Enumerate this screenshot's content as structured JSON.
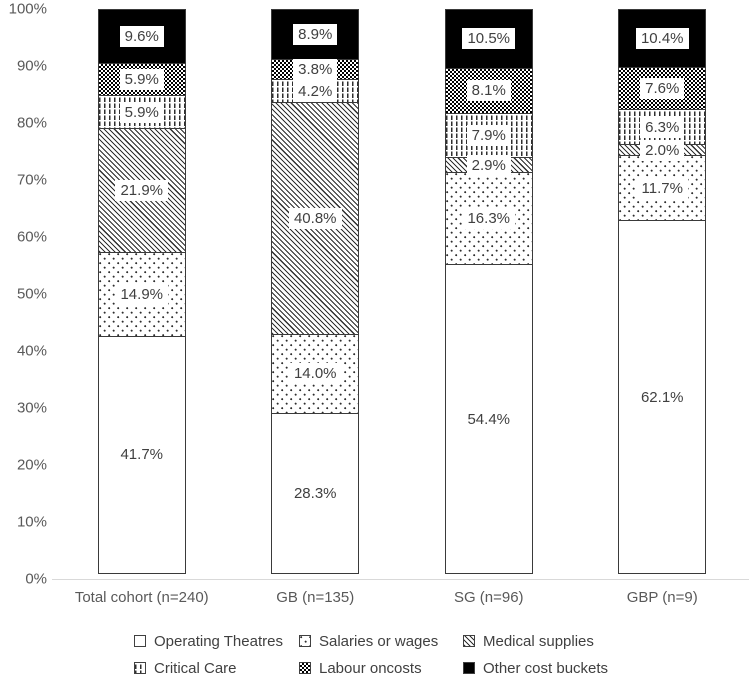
{
  "chart_data": {
    "type": "bar",
    "subtype": "stacked-100-percent",
    "title": "",
    "xlabel": "",
    "ylabel": "",
    "ylim": [
      0,
      100
    ],
    "grid": false,
    "legend_position": "bottom",
    "label_format": "one-decimal-percent",
    "y_ticks": [
      "100%",
      "90%",
      "80%",
      "70%",
      "60%",
      "50%",
      "40%",
      "30%",
      "20%",
      "10%",
      "0%"
    ],
    "categories": [
      "Total cohort (n=240)",
      "GB (n=135)",
      "SG (n=96)",
      "GBP (n=9)"
    ],
    "series": [
      {
        "name": "Operating Theatres",
        "pattern": "plain",
        "values": [
          41.7,
          28.3,
          54.4,
          62.1
        ]
      },
      {
        "name": "Salaries or wages",
        "pattern": "dots",
        "values": [
          14.9,
          14.0,
          16.3,
          11.7
        ]
      },
      {
        "name": "Medical supplies",
        "pattern": "diagonal-hatch",
        "values": [
          21.9,
          40.8,
          2.9,
          2.0
        ]
      },
      {
        "name": "Critical Care",
        "pattern": "vertical-dashes",
        "values": [
          5.9,
          4.2,
          7.9,
          6.3
        ]
      },
      {
        "name": "Labour oncosts",
        "pattern": "checker",
        "values": [
          5.9,
          3.8,
          8.1,
          7.6
        ]
      },
      {
        "name": "Other cost buckets",
        "pattern": "dark-checker",
        "values": [
          9.6,
          8.9,
          10.5,
          10.4
        ]
      }
    ],
    "colors": {
      "background": "#ffffff",
      "pattern_foreground": "#2e2e2e",
      "segment_border": "#3a3a3a",
      "axis_line": "#d9d9d9",
      "tick_text": "#595959",
      "data_label_text": "#404040"
    }
  }
}
